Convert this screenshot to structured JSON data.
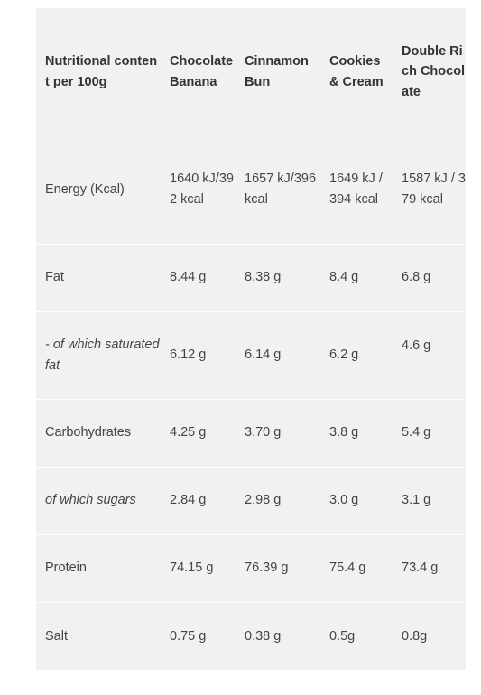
{
  "table": {
    "headers": [
      "Nutritional content per 100g",
      "Chocolate Banana",
      "Cinnamon Bun",
      "Cookies & Cream",
      "Double Rich Chocolate"
    ],
    "rows": [
      {
        "label": "Energy (Kcal)",
        "values": [
          "1640 kJ/392 kcal",
          "1657 kJ/396 kcal",
          "1649 kJ / 394 kcal",
          "1587 kJ / 379 kcal"
        ]
      },
      {
        "label": "Fat",
        "values": [
          "8.44 g",
          "8.38 g",
          "8.4 g",
          "6.8 g"
        ]
      },
      {
        "label": "- of which saturated fat",
        "values": [
          "6.12 g",
          "6.14 g",
          "6.2 g",
          "4.6 g"
        ]
      },
      {
        "label": "Carbohydrates",
        "values": [
          "4.25 g",
          "3.70 g",
          "3.8 g",
          "5.4 g"
        ]
      },
      {
        "label": "of which sugars",
        "values": [
          "2.84 g",
          "2.98 g",
          "3.0 g",
          "3.1 g"
        ]
      },
      {
        "label": "Protein",
        "values": [
          "74.15 g",
          "76.39 g",
          "75.4 g",
          "73.4 g"
        ]
      },
      {
        "label": "Salt",
        "values": [
          "0.75 g",
          "0.38 g",
          "0.5g",
          "0.8g"
        ]
      }
    ]
  }
}
